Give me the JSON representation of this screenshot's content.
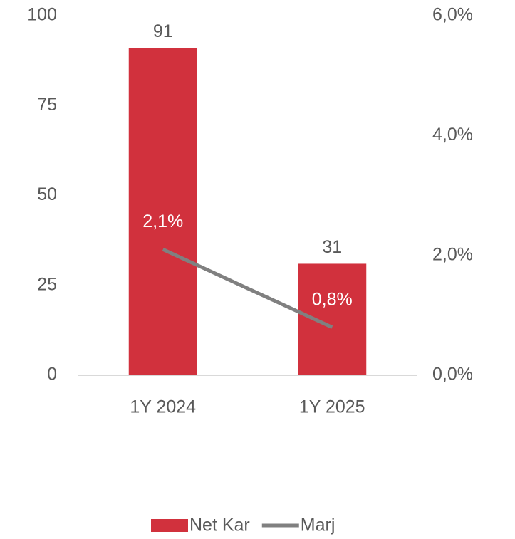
{
  "chart_data": {
    "type": "bar",
    "categories": [
      "1Y 2024",
      "1Y 2025"
    ],
    "series": [
      {
        "name": "Net Kar",
        "type": "bar",
        "color": "#d1313d",
        "values": [
          91,
          31
        ]
      },
      {
        "name": "Marj",
        "type": "line",
        "axis": "y2",
        "color": "#808080",
        "values": [
          2.1,
          0.8
        ],
        "value_labels": [
          "2,1%",
          "0,8%"
        ]
      }
    ],
    "ylim": [
      0,
      100
    ],
    "yticks": [
      0,
      25,
      50,
      75,
      100
    ],
    "y2lim": [
      0,
      6
    ],
    "y2ticks": [
      {
        "value": 0,
        "label": "0,0%"
      },
      {
        "value": 2,
        "label": "2,0%"
      },
      {
        "value": 4,
        "label": "4,0%"
      },
      {
        "value": 6,
        "label": "6,0%"
      }
    ],
    "grid": false,
    "legend": "bottom"
  }
}
